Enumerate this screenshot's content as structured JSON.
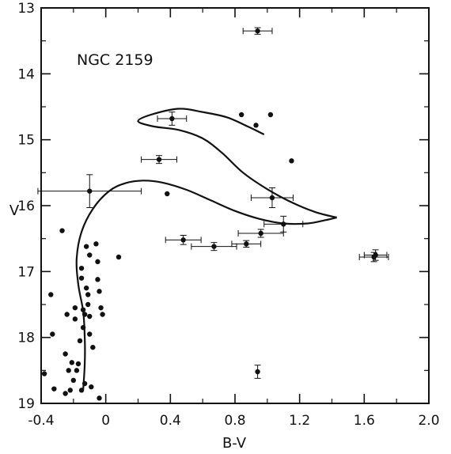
{
  "chart_data": {
    "type": "scatter",
    "annotation": "NGC 2159",
    "xlabel": "B-V",
    "ylabel": "V",
    "xlim": [
      -0.4,
      2.0
    ],
    "ylim": [
      13,
      19
    ],
    "y_inverted": true,
    "grid": false,
    "x_ticks": [
      -0.4,
      0,
      0.4,
      0.8,
      1.2,
      1.6,
      2.0
    ],
    "x_tick_labels": [
      "-0.4",
      "0",
      "0.4",
      "0.8",
      "1.2",
      "1.6",
      "2.0"
    ],
    "y_ticks": [
      13,
      14,
      15,
      16,
      17,
      18,
      19
    ],
    "y_tick_labels": [
      "13",
      "14",
      "15",
      "16",
      "17",
      "18",
      "19"
    ],
    "points": [
      {
        "x": -0.38,
        "y": 18.55
      },
      {
        "x": -0.34,
        "y": 17.35
      },
      {
        "x": -0.33,
        "y": 17.95
      },
      {
        "x": -0.32,
        "y": 18.78
      },
      {
        "x": -0.27,
        "y": 16.38
      },
      {
        "x": -0.25,
        "y": 18.25
      },
      {
        "x": -0.25,
        "y": 18.85
      },
      {
        "x": -0.24,
        "y": 17.65
      },
      {
        "x": -0.23,
        "y": 18.5
      },
      {
        "x": -0.22,
        "y": 18.8
      },
      {
        "x": -0.21,
        "y": 18.38
      },
      {
        "x": -0.2,
        "y": 18.65
      },
      {
        "x": -0.19,
        "y": 17.55
      },
      {
        "x": -0.19,
        "y": 17.72
      },
      {
        "x": -0.18,
        "y": 18.5
      },
      {
        "x": -0.17,
        "y": 18.4
      },
      {
        "x": -0.16,
        "y": 18.05
      },
      {
        "x": -0.15,
        "y": 18.8
      },
      {
        "x": -0.15,
        "y": 16.95
      },
      {
        "x": -0.15,
        "y": 17.1
      },
      {
        "x": -0.14,
        "y": 17.58
      },
      {
        "x": -0.14,
        "y": 17.85
      },
      {
        "x": -0.13,
        "y": 17.65
      },
      {
        "x": -0.13,
        "y": 18.7
      },
      {
        "x": -0.12,
        "y": 16.62
      },
      {
        "x": -0.12,
        "y": 17.25
      },
      {
        "x": -0.11,
        "y": 17.35
      },
      {
        "x": -0.11,
        "y": 17.5
      },
      {
        "x": -0.1,
        "y": 16.75
      },
      {
        "x": -0.1,
        "y": 17.68
      },
      {
        "x": -0.1,
        "y": 17.95
      },
      {
        "x": -0.09,
        "y": 18.75
      },
      {
        "x": -0.08,
        "y": 18.15
      },
      {
        "x": -0.06,
        "y": 16.58
      },
      {
        "x": -0.05,
        "y": 16.85
      },
      {
        "x": -0.05,
        "y": 17.12
      },
      {
        "x": -0.04,
        "y": 17.3
      },
      {
        "x": -0.03,
        "y": 17.55
      },
      {
        "x": -0.02,
        "y": 17.65
      },
      {
        "x": -0.04,
        "y": 18.92
      },
      {
        "x": 0.08,
        "y": 16.78
      },
      {
        "x": 0.38,
        "y": 15.82
      },
      {
        "x": 0.84,
        "y": 14.62
      },
      {
        "x": 0.93,
        "y": 14.78
      },
      {
        "x": 1.02,
        "y": 14.62
      },
      {
        "x": 1.15,
        "y": 15.32
      }
    ],
    "error_points": [
      {
        "x": 0.94,
        "y": 13.35,
        "xerr": 0.09,
        "yerr": 0.05
      },
      {
        "x": 0.41,
        "y": 14.68,
        "xerr": 0.09,
        "yerr": 0.1
      },
      {
        "x": 0.33,
        "y": 15.3,
        "xerr": 0.11,
        "yerr": 0.06
      },
      {
        "x": -0.1,
        "y": 15.78,
        "xerr": 0.32,
        "yerr": 0.25
      },
      {
        "x": 1.03,
        "y": 15.88,
        "xerr": 0.13,
        "yerr": 0.15
      },
      {
        "x": 1.1,
        "y": 16.28,
        "xerr": 0.12,
        "yerr": 0.12
      },
      {
        "x": 0.96,
        "y": 16.42,
        "xerr": 0.14,
        "yerr": 0.06
      },
      {
        "x": 0.48,
        "y": 16.52,
        "xerr": 0.11,
        "yerr": 0.07
      },
      {
        "x": 0.67,
        "y": 16.62,
        "xerr": 0.14,
        "yerr": 0.06
      },
      {
        "x": 0.87,
        "y": 16.58,
        "xerr": 0.09,
        "yerr": 0.05
      },
      {
        "x": 1.66,
        "y": 16.78,
        "xerr": 0.09,
        "yerr": 0.07
      },
      {
        "x": 1.67,
        "y": 16.75,
        "xerr": 0.07,
        "yerr": 0.08
      },
      {
        "x": 0.94,
        "y": 18.52,
        "xerr": 0.0,
        "yerr": 0.1
      }
    ],
    "curves": [
      {
        "name": "isochrone-main",
        "points": [
          [
            -0.14,
            18.8
          ],
          [
            -0.13,
            18.4
          ],
          [
            -0.13,
            18.0
          ],
          [
            -0.14,
            17.6
          ],
          [
            -0.17,
            17.2
          ],
          [
            -0.18,
            16.8
          ],
          [
            -0.15,
            16.4
          ],
          [
            -0.08,
            16.05
          ],
          [
            0.02,
            15.78
          ],
          [
            0.12,
            15.66
          ],
          [
            0.23,
            15.62
          ],
          [
            0.35,
            15.65
          ],
          [
            0.5,
            15.76
          ],
          [
            0.65,
            15.92
          ],
          [
            0.8,
            16.08
          ],
          [
            0.95,
            16.2
          ],
          [
            1.1,
            16.27
          ],
          [
            1.25,
            16.27
          ],
          [
            1.36,
            16.22
          ],
          [
            1.43,
            16.18
          ]
        ]
      },
      {
        "name": "isochrone-loop",
        "points": [
          [
            1.43,
            16.18
          ],
          [
            1.3,
            16.1
          ],
          [
            1.15,
            15.95
          ],
          [
            1.0,
            15.75
          ],
          [
            0.85,
            15.5
          ],
          [
            0.72,
            15.2
          ],
          [
            0.6,
            14.98
          ],
          [
            0.45,
            14.85
          ],
          [
            0.3,
            14.8
          ],
          [
            0.2,
            14.72
          ],
          [
            0.28,
            14.62
          ],
          [
            0.45,
            14.53
          ],
          [
            0.6,
            14.58
          ],
          [
            0.75,
            14.66
          ],
          [
            0.88,
            14.8
          ],
          [
            0.98,
            14.92
          ]
        ]
      }
    ]
  }
}
